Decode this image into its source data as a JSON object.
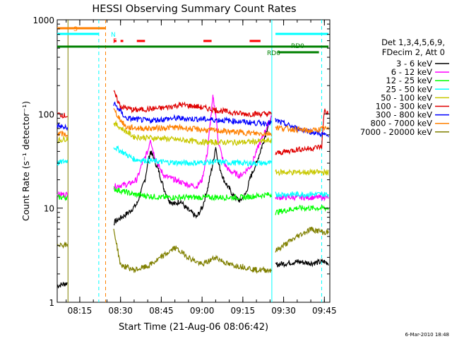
{
  "chart_data": {
    "type": "line",
    "title": "HESSI Observing Summary Count Rates",
    "xlabel": "Start Time (21-Aug-06 08:06:42)",
    "ylabel": "Count Rate (s⁻¹ detector⁻¹)",
    "yscale": "log",
    "xlim": [
      "08:06:42",
      "09:47:00"
    ],
    "ylim": [
      1,
      1000
    ],
    "x_ticks": [
      "08:15",
      "08:30",
      "08:45",
      "09:00",
      "09:15",
      "09:30",
      "09:45"
    ],
    "y_ticks": [
      "1",
      "10",
      "100",
      "1000"
    ],
    "legend_header": [
      "Det 1,3,4,5,6,9,",
      "FDecim 2, Att 0"
    ],
    "legend_position": "right",
    "footer_date": "6-Mar-2010 18:48",
    "segment_gaps": [
      [
        "08:10:40",
        "08:27:10"
      ],
      [
        "09:25:40",
        "09:27:00"
      ]
    ],
    "series": [
      {
        "name": "3 - 6 keV",
        "color": "#000000",
        "values": [
          [
            "08:06:42",
            1.5
          ],
          [
            "08:10:30",
            1.6
          ],
          [
            "08:27:30",
            7
          ],
          [
            "08:33:00",
            9
          ],
          [
            "08:36:00",
            11
          ],
          [
            "08:39:00",
            20
          ],
          [
            "08:40:00",
            30
          ],
          [
            "08:41:00",
            40
          ],
          [
            "08:42:00",
            35
          ],
          [
            "08:44:00",
            25
          ],
          [
            "08:46:00",
            16
          ],
          [
            "08:48:00",
            12
          ],
          [
            "08:50:00",
            11
          ],
          [
            "08:52:00",
            12
          ],
          [
            "08:54:00",
            10
          ],
          [
            "08:56:00",
            9
          ],
          [
            "08:58:00",
            8
          ],
          [
            "09:00:00",
            10
          ],
          [
            "09:02:00",
            16
          ],
          [
            "09:04:00",
            30
          ],
          [
            "09:05:00",
            45
          ],
          [
            "09:06:00",
            30
          ],
          [
            "09:08:00",
            20
          ],
          [
            "09:10:00",
            16
          ],
          [
            "09:12:00",
            13
          ],
          [
            "09:14:00",
            12
          ],
          [
            "09:16:00",
            14
          ],
          [
            "09:18:00",
            22
          ],
          [
            "09:20:00",
            30
          ],
          [
            "09:22:00",
            45
          ],
          [
            "09:24:00",
            70
          ],
          [
            "09:25:30",
            90
          ],
          [
            "09:27:00",
            2.5
          ],
          [
            "09:35:00",
            2.7
          ],
          [
            "09:40:00",
            2.6
          ],
          [
            "09:45:00",
            2.7
          ],
          [
            "09:46:30",
            2.6
          ]
        ]
      },
      {
        "name": "6 - 12 keV",
        "color": "#ff00ff",
        "values": [
          [
            "08:06:42",
            14
          ],
          [
            "08:10:30",
            14
          ],
          [
            "08:27:30",
            17
          ],
          [
            "08:33:00",
            18
          ],
          [
            "08:36:00",
            20
          ],
          [
            "08:38:00",
            30
          ],
          [
            "08:40:00",
            40
          ],
          [
            "08:41:00",
            55
          ],
          [
            "08:42:00",
            40
          ],
          [
            "08:44:00",
            28
          ],
          [
            "08:46:00",
            22
          ],
          [
            "08:50:00",
            20
          ],
          [
            "08:54:00",
            18
          ],
          [
            "08:58:00",
            17
          ],
          [
            "09:00:00",
            20
          ],
          [
            "09:02:00",
            40
          ],
          [
            "09:03:00",
            80
          ],
          [
            "09:04:00",
            150
          ],
          [
            "09:05:00",
            100
          ],
          [
            "09:06:00",
            50
          ],
          [
            "09:08:00",
            30
          ],
          [
            "09:10:00",
            25
          ],
          [
            "09:14:00",
            22
          ],
          [
            "09:18:00",
            28
          ],
          [
            "09:20:00",
            40
          ],
          [
            "09:22:00",
            55
          ],
          [
            "09:24:00",
            75
          ],
          [
            "09:25:30",
            95
          ],
          [
            "09:27:00",
            13
          ],
          [
            "09:35:00",
            13
          ],
          [
            "09:40:00",
            13
          ],
          [
            "09:45:00",
            13
          ],
          [
            "09:46:30",
            13
          ]
        ]
      },
      {
        "name": "12 - 25 keV",
        "color": "#00ff00",
        "values": [
          [
            "08:06:42",
            13
          ],
          [
            "08:10:30",
            13
          ],
          [
            "08:27:30",
            16
          ],
          [
            "08:35:00",
            14
          ],
          [
            "08:45:00",
            13
          ],
          [
            "08:55:00",
            13
          ],
          [
            "09:05:00",
            13
          ],
          [
            "09:15:00",
            13
          ],
          [
            "09:25:30",
            14
          ],
          [
            "09:27:00",
            9
          ],
          [
            "09:35:00",
            10
          ],
          [
            "09:40:00",
            10
          ],
          [
            "09:45:00",
            10
          ],
          [
            "09:46:30",
            10
          ]
        ]
      },
      {
        "name": "25 - 50 keV",
        "color": "#00ffff",
        "values": [
          [
            "08:06:42",
            30
          ],
          [
            "08:10:30",
            32
          ],
          [
            "08:27:30",
            45
          ],
          [
            "08:35:00",
            33
          ],
          [
            "08:45:00",
            31
          ],
          [
            "08:55:00",
            30
          ],
          [
            "09:05:00",
            31
          ],
          [
            "09:15:00",
            30
          ],
          [
            "09:25:30",
            30
          ],
          [
            "09:27:00",
            14
          ],
          [
            "09:35:00",
            14
          ],
          [
            "09:40:00",
            14
          ],
          [
            "09:45:00",
            14
          ],
          [
            "09:46:30",
            14
          ]
        ]
      },
      {
        "name": "50 - 100 keV",
        "color": "#c8c800",
        "values": [
          [
            "08:06:42",
            52
          ],
          [
            "08:10:30",
            55
          ],
          [
            "08:27:30",
            80
          ],
          [
            "08:35:00",
            57
          ],
          [
            "08:45:00",
            55
          ],
          [
            "08:55:00",
            52
          ],
          [
            "09:00:00",
            50
          ],
          [
            "09:05:00",
            50
          ],
          [
            "09:15:00",
            50
          ],
          [
            "09:25:30",
            52
          ],
          [
            "09:27:00",
            24
          ],
          [
            "09:35:00",
            24
          ],
          [
            "09:40:00",
            24
          ],
          [
            "09:45:00",
            24
          ],
          [
            "09:46:30",
            24
          ]
        ]
      },
      {
        "name": "100 - 300 keV",
        "color": "#e00000",
        "values": [
          [
            "08:06:42",
            100
          ],
          [
            "08:10:30",
            95
          ],
          [
            "08:27:30",
            170
          ],
          [
            "08:30:00",
            120
          ],
          [
            "08:35:00",
            110
          ],
          [
            "08:45:00",
            115
          ],
          [
            "08:52:00",
            125
          ],
          [
            "08:58:00",
            120
          ],
          [
            "09:05:00",
            110
          ],
          [
            "09:15:00",
            100
          ],
          [
            "09:25:30",
            100
          ],
          [
            "09:27:00",
            38
          ],
          [
            "09:35:00",
            42
          ],
          [
            "09:40:00",
            43
          ],
          [
            "09:44:00",
            45
          ],
          [
            "09:45:00",
            110
          ],
          [
            "09:46:30",
            100
          ]
        ]
      },
      {
        "name": "300 - 800 keV",
        "color": "#0000ff",
        "values": [
          [
            "08:06:42",
            75
          ],
          [
            "08:10:30",
            70
          ],
          [
            "08:27:30",
            130
          ],
          [
            "08:32:00",
            90
          ],
          [
            "08:40:00",
            85
          ],
          [
            "08:50:00",
            90
          ],
          [
            "09:00:00",
            88
          ],
          [
            "09:10:00",
            85
          ],
          [
            "09:20:00",
            80
          ],
          [
            "09:25:30",
            80
          ],
          [
            "09:27:00",
            85
          ],
          [
            "09:35:00",
            70
          ],
          [
            "09:40:00",
            65
          ],
          [
            "09:45:00",
            60
          ],
          [
            "09:46:30",
            58
          ]
        ]
      },
      {
        "name": "800 - 7000 keV",
        "color": "#ff8000",
        "values": [
          [
            "08:06:42",
            62
          ],
          [
            "08:10:30",
            60
          ],
          [
            "08:27:30",
            110
          ],
          [
            "08:32:00",
            72
          ],
          [
            "08:40:00",
            70
          ],
          [
            "08:50:00",
            72
          ],
          [
            "09:00:00",
            68
          ],
          [
            "09:10:00",
            65
          ],
          [
            "09:20:00",
            62
          ],
          [
            "09:25:30",
            62
          ],
          [
            "09:27:00",
            72
          ],
          [
            "09:35:00",
            68
          ],
          [
            "09:40:00",
            66
          ],
          [
            "09:45:00",
            70
          ],
          [
            "09:46:30",
            68
          ]
        ]
      },
      {
        "name": "7000 - 20000 keV",
        "color": "#808000",
        "values": [
          [
            "08:06:42",
            4.2
          ],
          [
            "08:10:30",
            4
          ],
          [
            "08:27:30",
            6
          ],
          [
            "08:30:00",
            2.5
          ],
          [
            "08:35:00",
            2.2
          ],
          [
            "08:40:00",
            2.4
          ],
          [
            "08:45:00",
            3
          ],
          [
            "08:50:00",
            3.8
          ],
          [
            "08:55:00",
            3
          ],
          [
            "09:00:00",
            2.5
          ],
          [
            "09:05:00",
            3
          ],
          [
            "09:10:00",
            2.5
          ],
          [
            "09:15:00",
            2.4
          ],
          [
            "09:20:00",
            2.2
          ],
          [
            "09:25:30",
            2.2
          ],
          [
            "09:27:00",
            3.5
          ],
          [
            "09:35:00",
            5
          ],
          [
            "09:40:00",
            6
          ],
          [
            "09:45:00",
            5.5
          ],
          [
            "09:46:30",
            5.5
          ]
        ]
      }
    ],
    "flag_labels": [
      "S",
      "N",
      "F",
      "RD0",
      "RD6"
    ],
    "flags": [
      {
        "label": "S",
        "color": "#ff8000",
        "intervals": [
          [
            "08:06:42",
            "08:24:30"
          ]
        ]
      },
      {
        "label": "N",
        "color": "#00ffff",
        "intervals": [
          [
            "08:06:42",
            "08:22:00"
          ],
          [
            "09:27:00",
            "09:46:30"
          ]
        ]
      },
      {
        "label": "F",
        "color": "#ff0000",
        "intervals": [
          [
            "08:27:30",
            "08:28:30"
          ],
          [
            "08:30:00",
            "08:31:00"
          ],
          [
            "08:36:00",
            "08:39:00"
          ],
          [
            "09:00:30",
            "09:03:30"
          ],
          [
            "09:17:30",
            "09:21:30"
          ]
        ]
      },
      {
        "label": "RD0",
        "color": "#008000",
        "intervals": [
          [
            "08:06:42",
            "09:46:30"
          ]
        ]
      },
      {
        "label": "RD6",
        "color": "#008000",
        "intervals": [
          [
            "09:28:00",
            "09:43:00"
          ]
        ]
      }
    ],
    "markers": [
      {
        "time": "08:10:40",
        "color": "#808000",
        "style": "solid"
      },
      {
        "time": "08:22:00",
        "color": "#00ffff",
        "style": "dashed"
      },
      {
        "time": "08:24:30",
        "color": "#ff8000",
        "style": "dashed"
      },
      {
        "time": "09:25:40",
        "color": "#00ffff",
        "style": "solid"
      },
      {
        "time": "09:44:00",
        "color": "#00ffff",
        "style": "dashed"
      }
    ]
  }
}
